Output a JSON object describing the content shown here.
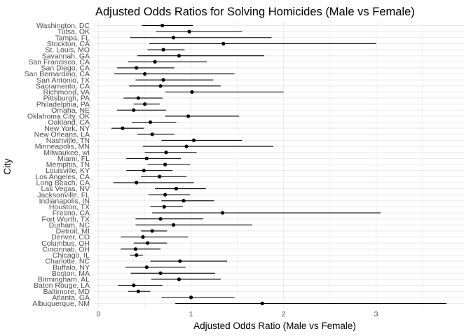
{
  "chart_data": {
    "type": "scatter",
    "title": "Adjusted Odds Ratios for Solving Homicides (Male vs Female)",
    "xlabel": "Adjusted Odds Ratio (Male vs Female)",
    "ylabel": "City",
    "xlim": [
      -0.05,
      3.95
    ],
    "xticks": [
      0,
      1,
      2,
      3
    ],
    "grid": true,
    "legend": "none",
    "point_color": "#000000",
    "grid_color": "#ebebeb",
    "categories": [
      "Albuquerque, NM",
      "Atlanta, GA",
      "Baltimore, MD",
      "Baton Rouge, LA",
      "Birmingham, AL",
      "Boston, MA",
      "Buffalo, NY",
      "Charlotte, NC",
      "Chicago, IL",
      "Cincinnati, OH",
      "Columbus, OH",
      "Denver, CO",
      "Detroit, MI",
      "Durham, NC",
      "Fort Worth, TX",
      "Fresno, CA",
      "Houston, TX",
      "Indianapolis, IN",
      "Jacksonville, FL",
      "Las Vegas, NV",
      "Long Beach, CA",
      "Los Angeles, CA",
      "Louisville, KY",
      "Memphis, TN",
      "Miami, FL",
      "Milwaukee, wI",
      "Minneapolis, MN",
      "Nashville, TN",
      "New Orleans, LA",
      "New York, NY",
      "Oakland, CA",
      "Oklahoma City, OK",
      "Omaha, NE",
      "Philadelphia, PA",
      "Pittsburgh, PA",
      "Richmond, VA",
      "Sacramento, CA",
      "San Antonio, TX",
      "San Bernardino, CA",
      "San Diego, CA",
      "San Francisco, CA",
      "Savannah, GA",
      "St. Louis, MO",
      "Stockton, CA",
      "Tampa, FL",
      "Tulsa, OK",
      "Washington, DC"
    ],
    "series": [
      {
        "estimate": [
          1.77,
          1.0,
          0.43,
          0.38,
          0.87,
          0.67,
          0.52,
          0.88,
          0.41,
          0.4,
          0.53,
          0.48,
          0.58,
          0.81,
          0.67,
          1.34,
          0.71,
          0.92,
          0.72,
          0.84,
          0.41,
          0.66,
          0.49,
          0.72,
          0.52,
          0.73,
          0.95,
          1.03,
          0.58,
          0.26,
          0.56,
          0.97,
          0.38,
          0.5,
          0.43,
          1.01,
          0.67,
          0.7,
          0.5,
          0.41,
          0.61,
          0.87,
          0.7,
          1.35,
          0.81,
          0.98,
          0.69
        ],
        "ci_low": [
          0.83,
          0.68,
          0.32,
          0.21,
          0.57,
          0.35,
          0.29,
          0.56,
          0.34,
          0.24,
          0.38,
          0.24,
          0.46,
          0.4,
          0.4,
          0.58,
          0.56,
          0.68,
          0.54,
          0.61,
          0.16,
          0.46,
          0.3,
          0.53,
          0.3,
          0.5,
          0.48,
          0.68,
          0.42,
          0.14,
          0.36,
          0.72,
          0.2,
          0.38,
          0.27,
          0.72,
          0.33,
          0.4,
          0.17,
          0.2,
          0.32,
          0.42,
          0.53,
          0.55,
          0.34,
          0.62,
          0.47
        ],
        "ci_high": [
          3.76,
          1.47,
          0.56,
          0.69,
          1.32,
          1.26,
          0.94,
          1.39,
          0.48,
          0.67,
          0.74,
          0.97,
          0.74,
          1.66,
          1.13,
          3.05,
          0.91,
          1.25,
          0.99,
          1.16,
          1.03,
          0.95,
          0.8,
          0.99,
          0.89,
          1.06,
          1.89,
          1.55,
          0.82,
          0.49,
          0.84,
          1.52,
          0.73,
          0.66,
          0.69,
          2.0,
          1.32,
          1.24,
          1.47,
          0.82,
          1.17,
          1.79,
          0.93,
          3.0,
          1.87,
          1.55,
          1.02
        ]
      }
    ]
  }
}
